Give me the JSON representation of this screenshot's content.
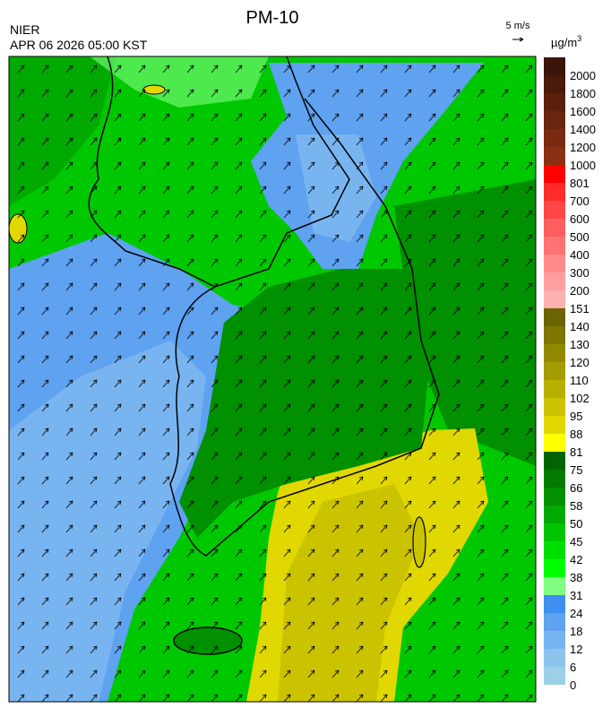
{
  "header": {
    "title": "PM-10",
    "agency": "NIER",
    "timestamp": "APR 06 2026 05:00 KST",
    "wind_scale": "5 m/s"
  },
  "legend": {
    "unit": "µg/m",
    "unit_superscript": "3",
    "labels": [
      "2000",
      "1800",
      "1600",
      "1400",
      "1200",
      "1000",
      "801",
      "700",
      "600",
      "500",
      "400",
      "300",
      "200",
      "151",
      "140",
      "130",
      "120",
      "110",
      "102",
      "95",
      "88",
      "81",
      "75",
      "66",
      "58",
      "50",
      "45",
      "42",
      "38",
      "31",
      "24",
      "18",
      "12",
      "6",
      "0"
    ],
    "colors": [
      "#3a1408",
      "#4a1a0a",
      "#5a200c",
      "#6a250e",
      "#7a2a10",
      "#8a3012",
      "#ff0000",
      "#ff2a2a",
      "#ff4646",
      "#ff5e5e",
      "#ff7272",
      "#ff8a8a",
      "#ff9e9e",
      "#ffb0b0",
      "#6b6400",
      "#7d7600",
      "#908900",
      "#a49c00",
      "#b8af00",
      "#ccc300",
      "#e0d800",
      "#ffff00",
      "#006400",
      "#007a00",
      "#009000",
      "#00aa00",
      "#00c400",
      "#00e000",
      "#00ff00",
      "#80ff80",
      "#3d8ff0",
      "#5ea2f0",
      "#78b4f0",
      "#8cc4ee",
      "#9ccfe8"
    ]
  }
}
